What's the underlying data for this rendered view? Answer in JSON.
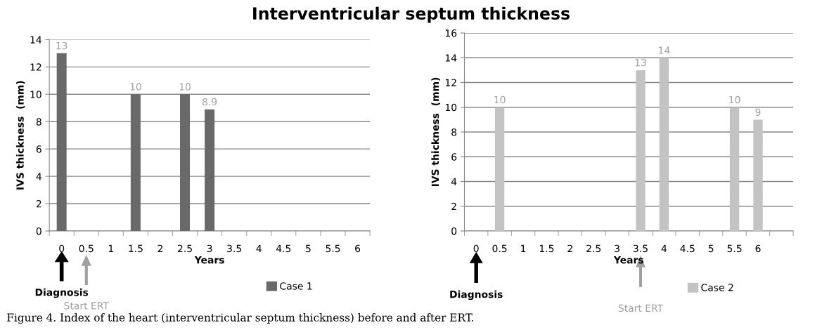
{
  "chart_data": [
    {
      "type": "bar",
      "title": "Interventricular septum thickness",
      "xlabel": "Years",
      "ylabel": "IVS thickness  (mm)",
      "categories": [
        "0",
        "0.5",
        "1",
        "1.5",
        "2",
        "2.5",
        "3",
        "3.5",
        "4",
        "4.5",
        "5",
        "5.5",
        "6"
      ],
      "series": [
        {
          "name": "Case 1",
          "color": "#696969",
          "values": [
            13,
            null,
            null,
            10,
            null,
            10,
            8.9,
            null,
            null,
            null,
            null,
            null,
            null
          ]
        }
      ],
      "ylim": [
        0,
        14
      ],
      "yticks": [
        0,
        2,
        4,
        6,
        8,
        10,
        12,
        14
      ],
      "grid": "y",
      "legend": "bottom",
      "data_labels": true,
      "annotations": [
        "Diagnosis",
        "Start ERT",
        "Figure 4. Index of the heart (interventricular septum thickness) before and after ERT."
      ]
    },
    {
      "type": "bar",
      "xlabel": "Years",
      "ylabel": "IVS thickness  (mm)",
      "categories": [
        "0",
        "0.5",
        "1",
        "1.5",
        "2",
        "2.5",
        "3",
        "3.5",
        "4",
        "4.5",
        "5",
        "5.5",
        "6",
        null
      ],
      "series": [
        {
          "name": "Case 2",
          "color": "#c3c3c3",
          "values": [
            null,
            10,
            null,
            null,
            null,
            null,
            null,
            13,
            14,
            null,
            null,
            10,
            9,
            null
          ]
        }
      ],
      "ylim": [
        0,
        16
      ],
      "yticks": [
        0,
        2,
        4,
        6,
        8,
        10,
        12,
        14,
        16
      ],
      "grid": "y",
      "legend": "bottom",
      "data_labels": true,
      "annotations": [
        "Diagnosis",
        "Start ERT"
      ]
    }
  ]
}
